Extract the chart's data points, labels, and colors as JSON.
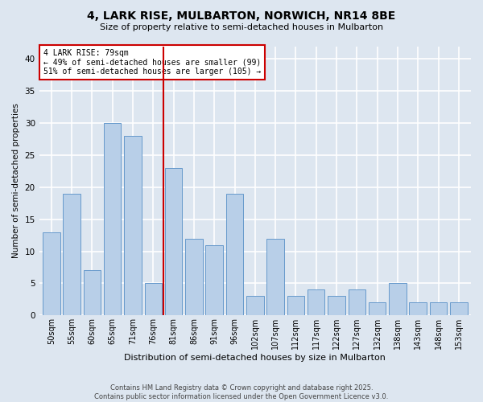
{
  "title": "4, LARK RISE, MULBARTON, NORWICH, NR14 8BE",
  "subtitle": "Size of property relative to semi-detached houses in Mulbarton",
  "xlabel": "Distribution of semi-detached houses by size in Mulbarton",
  "ylabel": "Number of semi-detached properties",
  "categories": [
    "50sqm",
    "55sqm",
    "60sqm",
    "65sqm",
    "71sqm",
    "76sqm",
    "81sqm",
    "86sqm",
    "91sqm",
    "96sqm",
    "102sqm",
    "107sqm",
    "112sqm",
    "117sqm",
    "122sqm",
    "127sqm",
    "132sqm",
    "138sqm",
    "143sqm",
    "148sqm",
    "153sqm"
  ],
  "values": [
    13,
    19,
    7,
    30,
    28,
    5,
    23,
    12,
    11,
    19,
    3,
    12,
    3,
    4,
    3,
    4,
    2,
    5,
    2,
    2,
    2
  ],
  "bar_color": "#b8cfe8",
  "bar_edge_color": "#6699cc",
  "background_color": "#dde6f0",
  "grid_color": "#ffffff",
  "vline_x": 5.5,
  "vline_color": "#cc0000",
  "annotation_text": "4 LARK RISE: 79sqm\n← 49% of semi-detached houses are smaller (99)\n51% of semi-detached houses are larger (105) →",
  "annotation_box_color": "#ffffff",
  "annotation_box_edge": "#cc0000",
  "ylim": [
    0,
    42
  ],
  "yticks": [
    0,
    5,
    10,
    15,
    20,
    25,
    30,
    35,
    40
  ],
  "footnote": "Contains HM Land Registry data © Crown copyright and database right 2025.\nContains public sector information licensed under the Open Government Licence v3.0."
}
